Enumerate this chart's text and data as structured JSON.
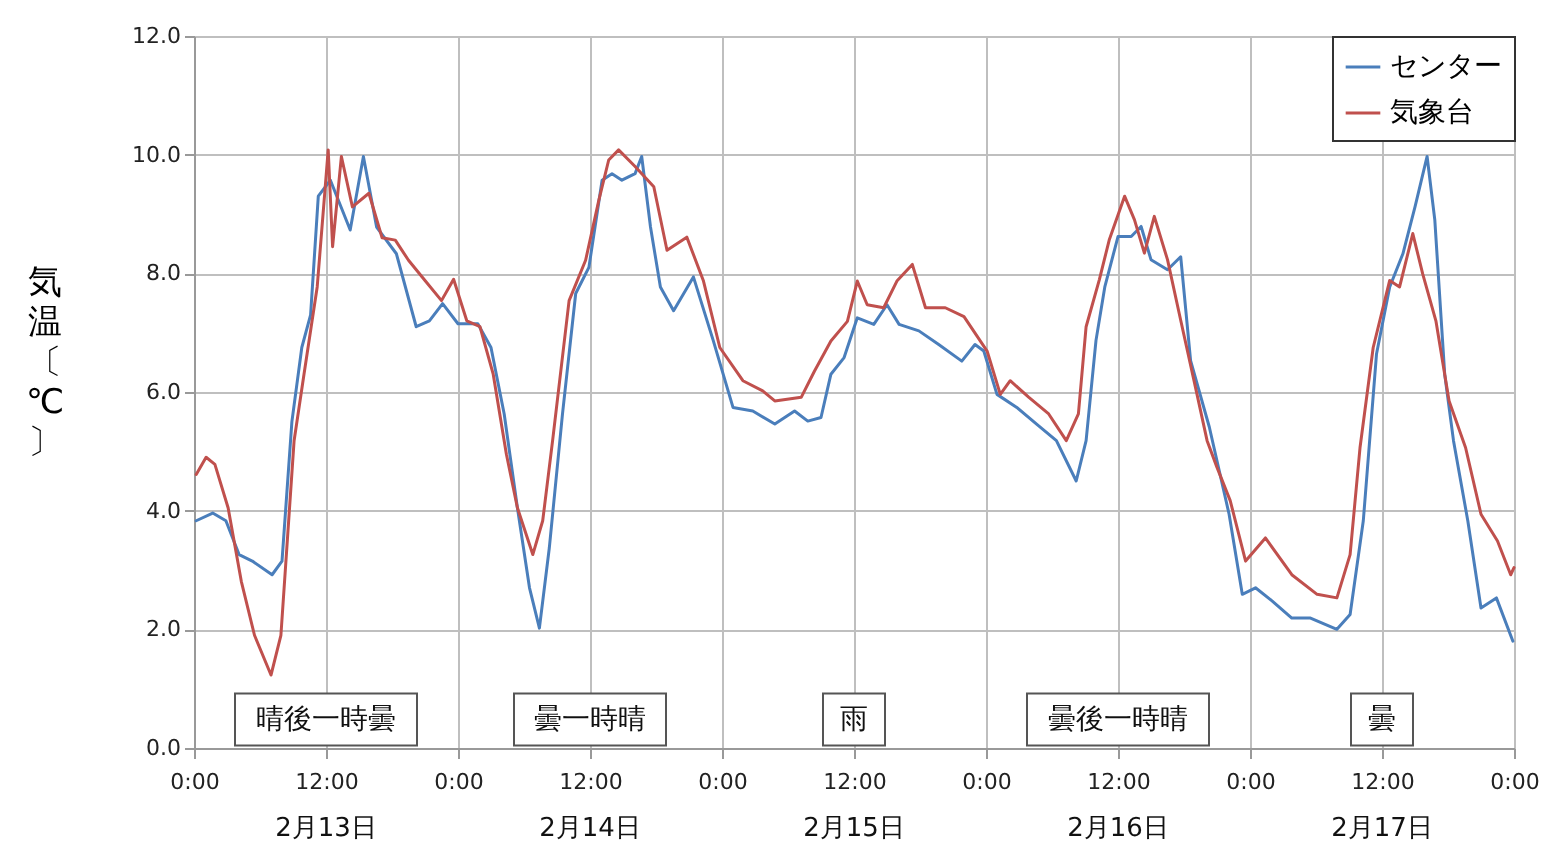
{
  "chart_data": {
    "type": "line",
    "ylabel": "気温〔℃〕",
    "xlim": [
      "--02-13T00:00",
      "--02-18T00:00"
    ],
    "ylim": [
      0,
      12
    ],
    "xticks": [
      {
        "value": "--02-13T00:00",
        "label": "0:00"
      },
      {
        "value": "--02-13T12:00",
        "label": "12:00"
      },
      {
        "value": "--02-14T00:00",
        "label": "0:00"
      },
      {
        "value": "--02-14T12:00",
        "label": "12:00"
      },
      {
        "value": "--02-15T00:00",
        "label": "0:00"
      },
      {
        "value": "--02-15T12:00",
        "label": "12:00"
      },
      {
        "value": "--02-16T00:00",
        "label": "0:00"
      },
      {
        "value": "--02-16T12:00",
        "label": "12:00"
      },
      {
        "value": "--02-17T00:00",
        "label": "0:00"
      },
      {
        "value": "--02-17T12:00",
        "label": "12:00"
      },
      {
        "value": "--02-18T00:00",
        "label": "0:00"
      }
    ],
    "yticks": [
      {
        "value": 0,
        "label": "0.0"
      },
      {
        "value": 2,
        "label": "2.0"
      },
      {
        "value": 4,
        "label": "4.0"
      },
      {
        "value": 6,
        "label": "6.0"
      },
      {
        "value": 8,
        "label": "8.0"
      },
      {
        "value": 10,
        "label": "10.0"
      },
      {
        "value": 12,
        "label": "12.0"
      }
    ],
    "grid": true,
    "legend": "top right",
    "line_style": "solid",
    "marker": "none",
    "series": [
      {
        "name": "センター",
        "color": "#4a7ebb",
        "x": [
          "--02-13T00:12",
          "--02-13T01:42",
          "--02-13T02:54",
          "--02-13T04:06",
          "--02-13T05:18",
          "--02-13T07:06",
          "--02-13T08:00",
          "--02-13T08:54",
          "--02-13T09:48",
          "--02-13T10:36",
          "--02-13T11:18",
          "--02-13T12:24",
          "--02-13T14:12",
          "--02-13T15:24",
          "--02-13T16:36",
          "--02-13T18:24",
          "--02-13T20:12",
          "--02-13T21:24",
          "--02-13T22:36",
          "--02-14T00:00",
          "--02-14T01:48",
          "--02-14T03:00",
          "--02-14T04:12",
          "--02-14T05:24",
          "--02-14T06:30",
          "--02-14T07:24",
          "--02-14T08:18",
          "--02-14T09:30",
          "--02-14T10:42",
          "--02-14T11:54",
          "--02-14T13:06",
          "--02-14T14:00",
          "--02-14T14:54",
          "--02-14T16:06",
          "--02-14T16:42",
          "--02-14T17:30",
          "--02-14T18:24",
          "--02-14T19:36",
          "--02-14T21:24",
          "--02-14T23:12",
          "--02-15T01:00",
          "--02-15T02:48",
          "--02-15T04:48",
          "--02-15T06:36",
          "--02-15T07:48",
          "--02-15T09:00",
          "--02-15T09:54",
          "--02-15T11:06",
          "--02-15T12:18",
          "--02-15T13:48",
          "--02-15T15:00",
          "--02-15T16:06",
          "--02-15T17:54",
          "--02-15T19:42",
          "--02-15T21:48",
          "--02-15T23:00",
          "--02-15T23:48",
          "--02-16T01:00",
          "--02-16T02:48",
          "--02-16T04:36",
          "--02-16T06:24",
          "--02-16T08:12",
          "--02-16T09:06",
          "--02-16T10:00",
          "--02-16T10:48",
          "--02-16T12:00",
          "--02-16T13:12",
          "--02-16T14:06",
          "--02-16T15:00",
          "--02-16T16:30",
          "--02-16T17:42",
          "--02-16T18:36",
          "--02-16T20:18",
          "--02-16T22:06",
          "--02-16T23:18",
          "--02-17T00:30",
          "--02-17T02:00",
          "--02-17T03:48",
          "--02-17T05:30",
          "--02-17T07:54",
          "--02-17T09:06",
          "--02-17T10:18",
          "--02-17T11:30",
          "--02-17T12:42",
          "--02-17T13:54",
          "--02-17T15:00",
          "--02-17T16:06",
          "--02-17T16:48",
          "--02-17T17:42",
          "--02-17T18:30",
          "--02-17T19:48",
          "--02-17T21:00",
          "--02-17T22:24",
          "--02-17T23:54"
        ],
        "values": [
          3.83,
          3.96,
          3.83,
          3.26,
          3.15,
          2.92,
          3.15,
          5.5,
          6.75,
          7.3,
          9.3,
          9.57,
          8.73,
          9.97,
          8.78,
          8.33,
          7.1,
          7.2,
          7.49,
          7.15,
          7.15,
          6.75,
          5.63,
          4.05,
          2.7,
          2.02,
          3.37,
          5.63,
          7.66,
          8.1,
          9.57,
          9.68,
          9.57,
          9.68,
          9.97,
          8.78,
          7.77,
          7.37,
          7.94,
          6.87,
          5.74,
          5.68,
          5.46,
          5.68,
          5.51,
          5.57,
          6.3,
          6.58,
          7.25,
          7.14,
          7.47,
          7.14,
          7.03,
          6.8,
          6.52,
          6.8,
          6.69,
          5.96,
          5.74,
          5.46,
          5.18,
          4.5,
          5.18,
          6.87,
          7.77,
          8.62,
          8.62,
          8.79,
          8.23,
          8.06,
          8.28,
          6.53,
          5.41,
          3.94,
          2.59,
          2.7,
          2.48,
          2.19,
          2.19,
          2.0,
          2.25,
          3.83,
          6.64,
          7.77,
          8.33,
          9.12,
          9.97,
          8.9,
          6.3,
          5.18,
          3.83,
          2.36,
          2.53,
          1.8
        ]
      },
      {
        "name": "気象台",
        "color": "#c0504d",
        "x": [
          "--02-13T00:12",
          "--02-13T01:06",
          "--02-13T01:54",
          "--02-13T03:06",
          "--02-13T04:18",
          "--02-13T05:30",
          "--02-13T07:00",
          "--02-13T07:54",
          "--02-13T09:06",
          "--02-13T10:00",
          "--02-13T11:12",
          "--02-13T12:12",
          "--02-13T12:36",
          "--02-13T13:24",
          "--02-13T14:24",
          "--02-13T15:54",
          "--02-13T17:06",
          "--02-13T18:18",
          "--02-13T19:30",
          "--02-13T21:00",
          "--02-13T22:30",
          "--02-13T23:36",
          "--02-14T00:48",
          "--02-14T02:00",
          "--02-14T03:12",
          "--02-14T04:24",
          "--02-14T05:24",
          "--02-14T06:48",
          "--02-14T07:42",
          "--02-14T08:36",
          "--02-14T10:06",
          "--02-14T11:36",
          "--02-14T12:48",
          "--02-14T13:42",
          "--02-14T14:36",
          "--02-14T16:06",
          "--02-14T17:48",
          "--02-14T19:00",
          "--02-14T20:48",
          "--02-14T22:18",
          "--02-14T23:48",
          "--02-15T01:54",
          "--02-15T03:42",
          "--02-15T04:48",
          "--02-15T07:12",
          "--02-15T08:24",
          "--02-15T09:54",
          "--02-15T11:24",
          "--02-15T12:18",
          "--02-15T13:12",
          "--02-15T14:42",
          "--02-15T15:54",
          "--02-15T17:18",
          "--02-15T18:30",
          "--02-15T20:18",
          "--02-15T22:00",
          "--02-16T00:06",
          "--02-16T01:18",
          "--02-16T02:12",
          "--02-16T03:54",
          "--02-16T05:42",
          "--02-16T07:18",
          "--02-16T08:24",
          "--02-16T09:06",
          "--02-16T10:18",
          "--02-16T11:12",
          "--02-16T12:36",
          "--02-16T13:30",
          "--02-16T14:24",
          "--02-16T15:18",
          "--02-16T16:30",
          "--02-16T17:42",
          "--02-16T18:54",
          "--02-16T20:06",
          "--02-16T21:00",
          "--02-16T22:12",
          "--02-16T23:36",
          "--02-17T01:24",
          "--02-17T03:48",
          "--02-17T06:06",
          "--02-17T07:54",
          "--02-17T09:06",
          "--02-17T10:00",
          "--02-17T11:12",
          "--02-17T12:42",
          "--02-17T13:36",
          "--02-17T14:48",
          "--02-17T15:42",
          "--02-17T16:54",
          "--02-17T18:06",
          "--02-17T19:36",
          "--02-17T21:00",
          "--02-17T22:30",
          "--02-17T23:42",
          "--02-18T00:00"
        ],
        "values": [
          4.61,
          4.9,
          4.78,
          4.05,
          2.81,
          1.9,
          1.23,
          1.9,
          5.18,
          6.3,
          7.77,
          10.08,
          8.45,
          9.97,
          9.12,
          9.35,
          8.6,
          8.56,
          8.22,
          7.88,
          7.54,
          7.9,
          7.2,
          7.1,
          6.3,
          4.95,
          4.05,
          3.26,
          3.83,
          5.18,
          7.54,
          8.22,
          9.23,
          9.91,
          10.08,
          9.8,
          9.46,
          8.39,
          8.61,
          7.88,
          6.75,
          6.19,
          6.02,
          5.85,
          5.91,
          6.35,
          6.86,
          7.19,
          7.87,
          7.47,
          7.42,
          7.87,
          8.15,
          7.42,
          7.42,
          7.27,
          6.69,
          5.96,
          6.19,
          5.91,
          5.63,
          5.18,
          5.63,
          7.1,
          7.89,
          8.56,
          9.3,
          8.9,
          8.34,
          8.96,
          8.23,
          7.21,
          6.2,
          5.18,
          4.73,
          4.17,
          3.15,
          3.54,
          2.92,
          2.59,
          2.53,
          3.26,
          5.06,
          6.75,
          7.88,
          7.77,
          8.67,
          7.99,
          7.2,
          5.85,
          5.06,
          3.94,
          3.49,
          2.92,
          3.04
        ]
      }
    ],
    "annotations": [
      "晴後一時曇",
      "曇一時晴",
      "雨",
      "曇後一時晴",
      "曇",
      "2月13日",
      "2月14日",
      "2月15日",
      "2月16日",
      "2月17日"
    ]
  }
}
